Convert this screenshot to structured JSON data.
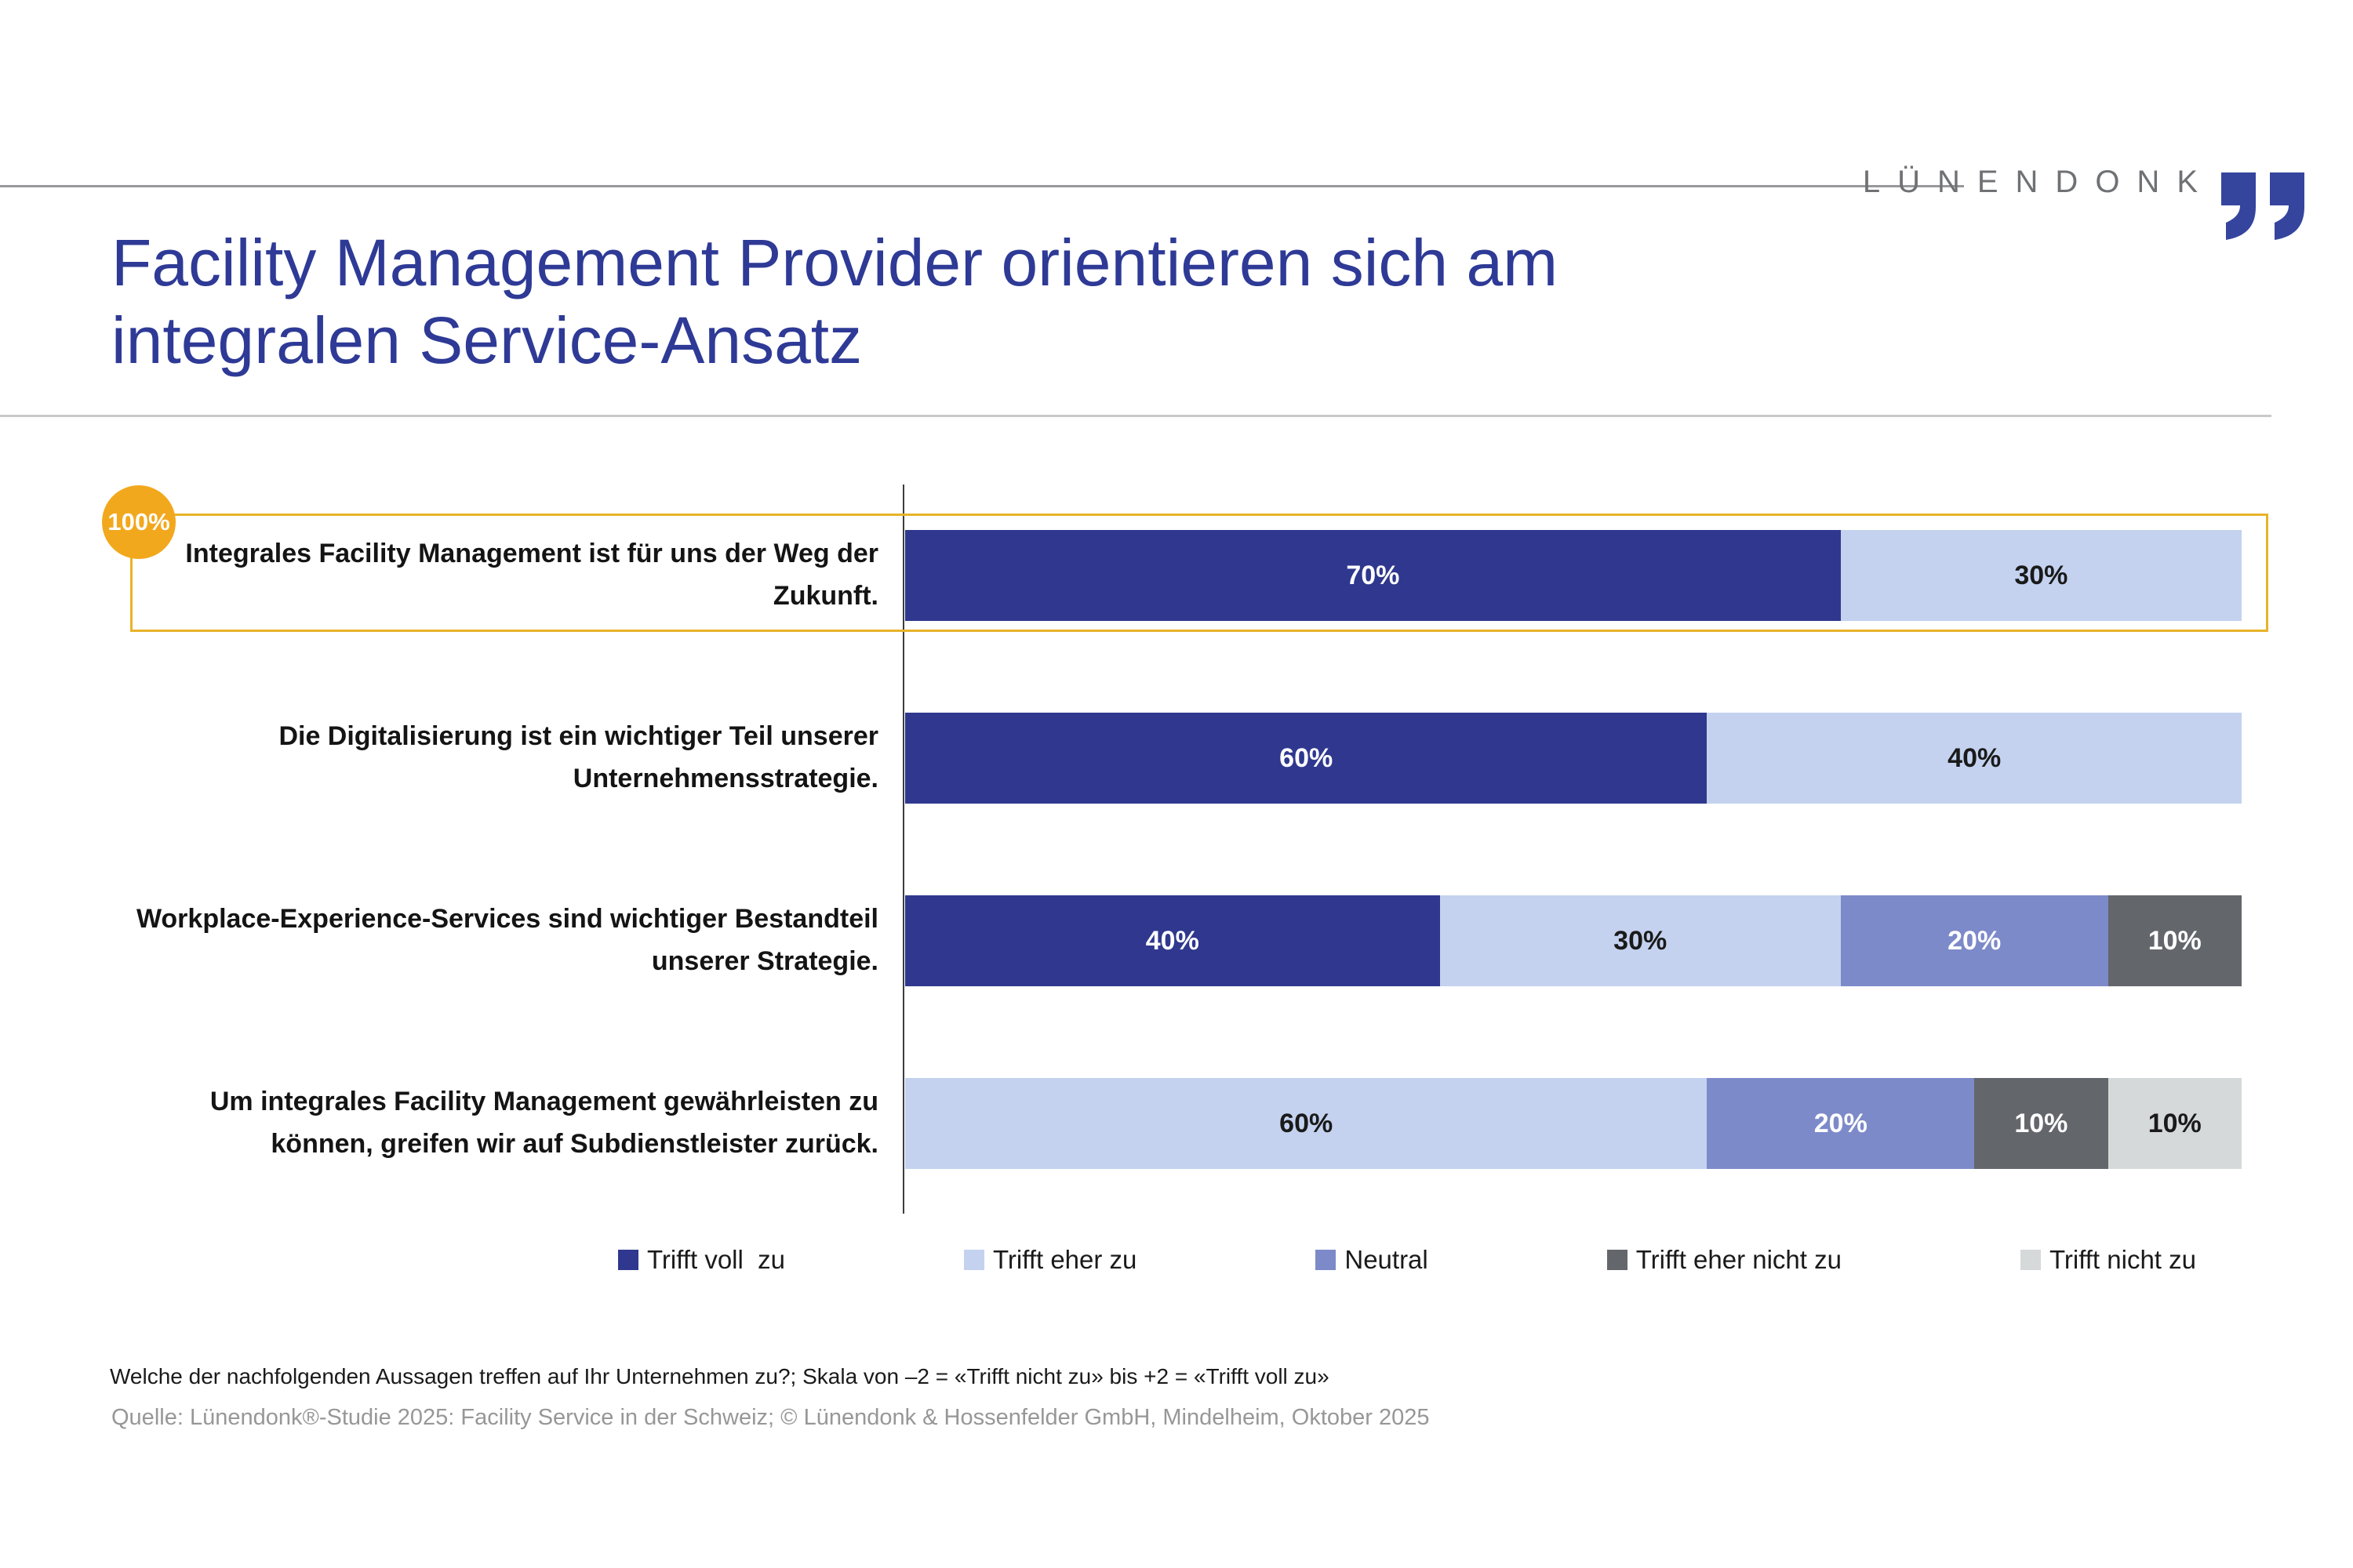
{
  "slide": {
    "logo": {
      "text": "LÜNENDONK",
      "text_color": "#6F7174",
      "mark_color": "#35459E"
    },
    "title_lines": [
      "Facility Management Provider orientieren sich am",
      "integralen Service-Ansatz"
    ],
    "title_color": "#2E3A96"
  },
  "chart_data": {
    "type": "bar",
    "orientation": "horizontal",
    "stacked": true,
    "unit": "%",
    "value_range": [
      0,
      100
    ],
    "grid": false,
    "legend_position": "bottom",
    "legend": [
      {
        "key": "voll",
        "label": "Trifft voll  zu",
        "fill": "#2F388E",
        "text_color": "#FFFFFF"
      },
      {
        "key": "eher",
        "label": "Trifft eher zu",
        "fill": "#C4D2EF",
        "text_color": "#1A1A1A"
      },
      {
        "key": "neutral",
        "label": "Neutral",
        "fill": "#7D8AC9",
        "text_color": "#FFFFFF"
      },
      {
        "key": "eher_nicht",
        "label": "Trifft eher nicht zu",
        "fill": "#63666B",
        "text_color": "#FFFFFF"
      },
      {
        "key": "nicht",
        "label": "Trifft nicht zu",
        "fill": "#D5D9DA",
        "text_color": "#1A1A1A"
      }
    ],
    "rows": [
      {
        "label": "Integrales Facility Management ist für uns der Weg der Zukunft.",
        "highlighted": true,
        "segments": [
          {
            "key": "voll",
            "value": 70
          },
          {
            "key": "eher",
            "value": 30
          }
        ]
      },
      {
        "label": "Die Digitalisierung ist ein wichtiger Teil unserer Unternehmensstrategie.",
        "highlighted": false,
        "segments": [
          {
            "key": "voll",
            "value": 60
          },
          {
            "key": "eher",
            "value": 40
          }
        ]
      },
      {
        "label": "Workplace-Experience-Services sind wichtiger Bestandteil unserer Strategie.",
        "highlighted": false,
        "segments": [
          {
            "key": "voll",
            "value": 40
          },
          {
            "key": "eher",
            "value": 30
          },
          {
            "key": "neutral",
            "value": 20
          },
          {
            "key": "eher_nicht",
            "value": 10
          }
        ]
      },
      {
        "label": "Um integrales Facility Management gewährleisten zu können, greifen wir auf Subdienstleister zurück.",
        "highlighted": false,
        "segments": [
          {
            "key": "eher",
            "value": 60
          },
          {
            "key": "neutral",
            "value": 20
          },
          {
            "key": "eher_nicht",
            "value": 10
          },
          {
            "key": "nicht",
            "value": 10
          }
        ]
      }
    ],
    "highlight": {
      "badge": "100%",
      "badge_fill": "#F2A81D",
      "border_color": "#E8B32A"
    }
  },
  "footer": {
    "note": "Welche der nachfolgenden Aussagen treffen auf Ihr Unternehmen zu?; Skala von –2 = «Trifft nicht zu» bis +2 = «Trifft voll zu»",
    "source": "Quelle: Lünendonk®-Studie 2025: Facility Service in der Schweiz; © Lünendonk & Hossenfelder GmbH, Mindelheim, Oktober 2025"
  }
}
